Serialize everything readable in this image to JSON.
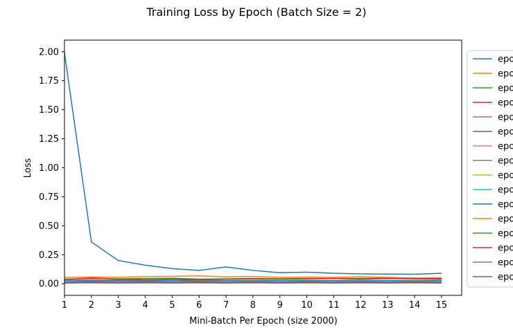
{
  "chart_data": {
    "type": "line",
    "title": "Training Loss by Epoch (Batch Size = 2)",
    "xlabel": "Mini-Batch Per Epoch (size 2000)",
    "ylabel": "Loss",
    "xlim": [
      1,
      15.75
    ],
    "ylim": [
      -0.1,
      2.1
    ],
    "x": [
      1,
      2,
      3,
      4,
      5,
      6,
      7,
      8,
      9,
      10,
      11,
      12,
      13,
      14,
      15
    ],
    "xticks": [
      "1",
      "2",
      "3",
      "4",
      "5",
      "6",
      "7",
      "8",
      "9",
      "10",
      "11",
      "12",
      "13",
      "14",
      "15"
    ],
    "yticks": [
      "0.00",
      "0.25",
      "0.50",
      "0.75",
      "1.00",
      "1.25",
      "1.50",
      "1.75",
      "2.00"
    ],
    "grid": false,
    "legend_position": "right, outside plot area (clipped)",
    "legend_visible_text": "epo",
    "series": [
      {
        "color": "#1f77b4",
        "values": [
          1.99,
          0.36,
          0.2,
          0.16,
          0.13,
          0.115,
          0.145,
          0.115,
          0.095,
          0.1,
          0.09,
          0.085,
          0.083,
          0.082,
          0.09
        ]
      },
      {
        "color": "#ff7f0e",
        "values": [
          0.055,
          0.058,
          0.056,
          0.062,
          0.065,
          0.068,
          0.06,
          0.063,
          0.055,
          0.058,
          0.055,
          0.06,
          0.055,
          0.05,
          0.052
        ]
      },
      {
        "color": "#2ca02c",
        "values": [
          0.04,
          0.045,
          0.042,
          0.045,
          0.048,
          0.04,
          0.042,
          0.045,
          0.043,
          0.045,
          0.045,
          0.046,
          0.048,
          0.042,
          0.04
        ]
      },
      {
        "color": "#d62728",
        "values": [
          0.035,
          0.05,
          0.038,
          0.035,
          0.04,
          0.035,
          0.04,
          0.042,
          0.04,
          0.042,
          0.045,
          0.04,
          0.045,
          0.042,
          0.045
        ]
      },
      {
        "color": "#9467bd",
        "values": [
          0.03,
          0.032,
          0.03,
          0.028,
          0.03,
          0.03,
          0.028,
          0.03,
          0.028,
          0.03,
          0.028,
          0.03,
          0.028,
          0.028,
          0.03
        ]
      },
      {
        "color": "#8c564b",
        "values": [
          0.025,
          0.028,
          0.025,
          0.027,
          0.025,
          0.03,
          0.025,
          0.026,
          0.027,
          0.025,
          0.026,
          0.025,
          0.027,
          0.025,
          0.026
        ]
      },
      {
        "color": "#e377c2",
        "values": [
          0.02,
          0.022,
          0.02,
          0.022,
          0.02,
          0.018,
          0.02,
          0.022,
          0.02,
          0.018,
          0.02,
          0.022,
          0.02,
          0.018,
          0.02
        ]
      },
      {
        "color": "#7f7f7f",
        "values": [
          0.025,
          0.02,
          0.022,
          0.02,
          0.022,
          0.025,
          0.022,
          0.02,
          0.022,
          0.02,
          0.022,
          0.02,
          0.022,
          0.022,
          0.02
        ]
      },
      {
        "color": "#bcbd22",
        "values": [
          0.018,
          0.02,
          0.018,
          0.02,
          0.018,
          0.02,
          0.018,
          0.02,
          0.018,
          0.02,
          0.018,
          0.02,
          0.018,
          0.02,
          0.018
        ]
      },
      {
        "color": "#17becf",
        "values": [
          0.022,
          0.02,
          0.018,
          0.02,
          0.022,
          0.018,
          0.02,
          0.018,
          0.022,
          0.02,
          0.018,
          0.02,
          0.022,
          0.018,
          0.02
        ]
      },
      {
        "color": "#1f77b4",
        "values": [
          0.015,
          0.018,
          0.015,
          0.018,
          0.015,
          0.018,
          0.015,
          0.018,
          0.015,
          0.018,
          0.015,
          0.018,
          0.015,
          0.018,
          0.015
        ]
      },
      {
        "color": "#ff7f0e",
        "values": [
          0.015,
          0.012,
          0.015,
          0.012,
          0.015,
          0.012,
          0.015,
          0.012,
          0.015,
          0.012,
          0.015,
          0.012,
          0.015,
          0.012,
          0.015
        ]
      },
      {
        "color": "#2ca02c",
        "values": [
          0.012,
          0.015,
          0.012,
          0.015,
          0.012,
          0.015,
          0.012,
          0.015,
          0.012,
          0.015,
          0.012,
          0.015,
          0.012,
          0.015,
          0.012
        ]
      },
      {
        "color": "#d62728",
        "values": [
          0.008,
          0.01,
          0.008,
          0.01,
          0.008,
          0.01,
          0.008,
          0.01,
          0.008,
          0.01,
          0.008,
          0.01,
          0.008,
          0.01,
          0.008
        ]
      },
      {
        "color": "#9467bd",
        "values": [
          0.01,
          0.008,
          0.01,
          0.008,
          0.01,
          0.008,
          0.01,
          0.008,
          0.01,
          0.008,
          0.01,
          0.008,
          0.01,
          0.008,
          0.01
        ]
      },
      {
        "color": "#8c564b",
        "values": [
          0.006,
          0.008,
          0.006,
          0.008,
          0.006,
          0.008,
          0.006,
          0.008,
          0.006,
          0.008,
          0.006,
          0.008,
          0.006,
          0.008,
          0.006
        ]
      }
    ]
  }
}
